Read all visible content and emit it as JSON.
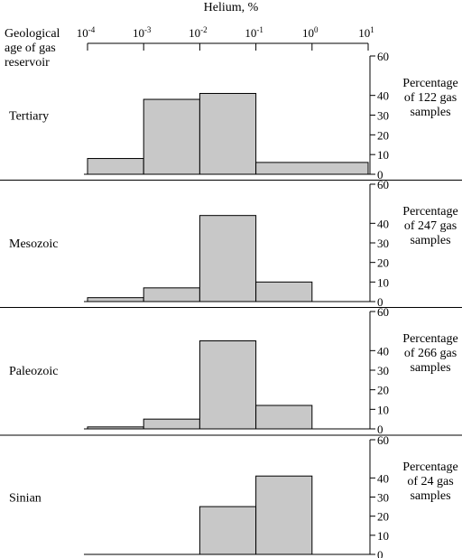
{
  "chart_data": {
    "type": "bar",
    "title": "Helium, %",
    "x_scale": "log",
    "x_ticks": [
      {
        "base": "10",
        "exp": "-4"
      },
      {
        "base": "10",
        "exp": "-3"
      },
      {
        "base": "10",
        "exp": "-2"
      },
      {
        "base": "10",
        "exp": "-1"
      },
      {
        "base": "10",
        "exp": "0"
      },
      {
        "base": "10",
        "exp": "1"
      }
    ],
    "row_header": [
      "Geological",
      "age of gas",
      "reservoir"
    ],
    "y_ticks": [
      "60",
      "40",
      "30",
      "20",
      "10",
      "0"
    ],
    "y_tick_values": [
      60,
      40,
      30,
      20,
      10,
      0
    ],
    "ylim": [
      0,
      60
    ],
    "bar_color": "#c8c8c8",
    "panels": [
      {
        "label": "Tertiary",
        "ylabel": [
          "Percentage",
          "of 122 gas",
          "samples"
        ],
        "bins": [
          {
            "from": 0.0001,
            "to": 0.001,
            "value": 8
          },
          {
            "from": 0.001,
            "to": 0.01,
            "value": 38
          },
          {
            "from": 0.01,
            "to": 0.1,
            "value": 41
          },
          {
            "from": 0.1,
            "to": 10,
            "value": 6
          }
        ]
      },
      {
        "label": "Mesozoic",
        "ylabel": [
          "Percentage",
          "of 247 gas",
          "samples"
        ],
        "bins": [
          {
            "from": 0.0001,
            "to": 0.001,
            "value": 2
          },
          {
            "from": 0.001,
            "to": 0.01,
            "value": 7
          },
          {
            "from": 0.01,
            "to": 0.1,
            "value": 44
          },
          {
            "from": 0.1,
            "to": 1,
            "value": 10
          }
        ]
      },
      {
        "label": "Paleozoic",
        "ylabel": [
          "Percentage",
          "of 266 gas",
          "samples"
        ],
        "bins": [
          {
            "from": 0.0001,
            "to": 0.001,
            "value": 1
          },
          {
            "from": 0.001,
            "to": 0.01,
            "value": 5
          },
          {
            "from": 0.01,
            "to": 0.1,
            "value": 45
          },
          {
            "from": 0.1,
            "to": 1,
            "value": 12
          }
        ]
      },
      {
        "label": "Sinian",
        "ylabel": [
          "Percentage",
          "of 24 gas",
          "samples"
        ],
        "bins": [
          {
            "from": 0.01,
            "to": 0.1,
            "value": 25
          },
          {
            "from": 0.1,
            "to": 1,
            "value": 41
          }
        ]
      }
    ]
  }
}
